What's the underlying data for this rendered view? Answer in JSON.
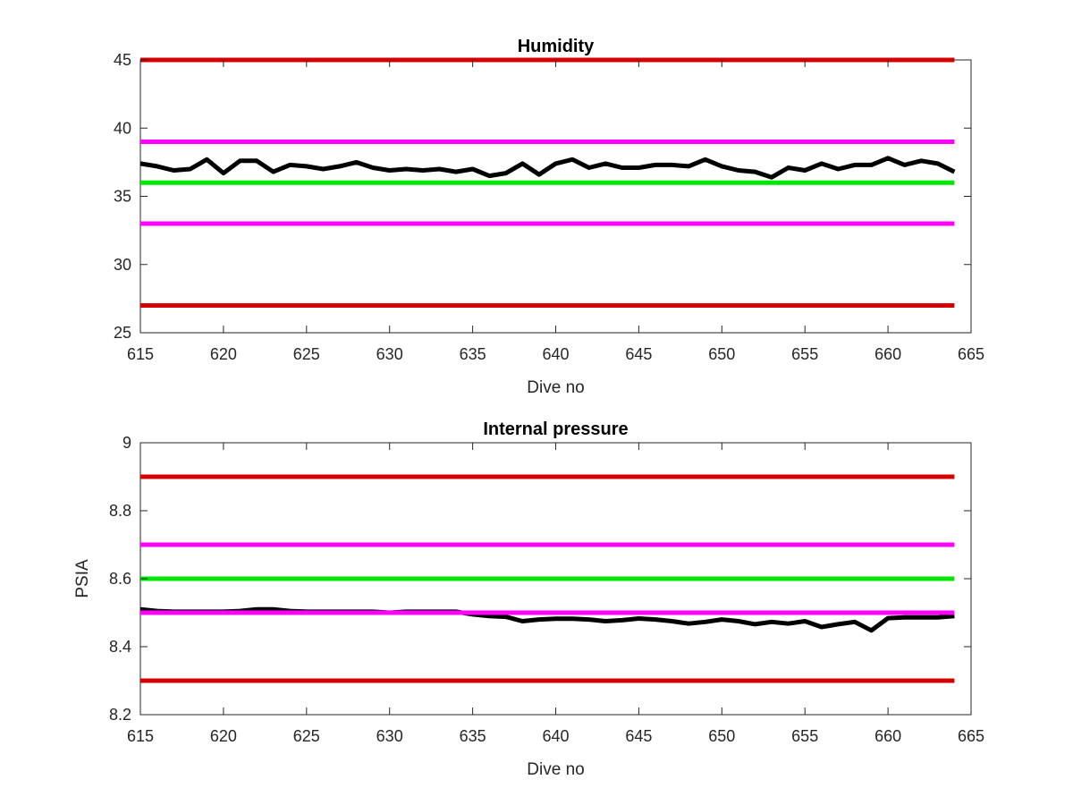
{
  "chart_data": [
    {
      "type": "line",
      "title": "Humidity",
      "xlabel": "Dive no",
      "ylabel": "",
      "xlim": [
        615,
        665
      ],
      "ylim": [
        25,
        45
      ],
      "xticks": [
        615,
        620,
        625,
        630,
        635,
        640,
        645,
        650,
        655,
        660,
        665
      ],
      "yticks": [
        25,
        30,
        35,
        40,
        45
      ],
      "grid": false,
      "series": [
        {
          "color": "#d40000",
          "x": [
            615,
            664
          ],
          "values": [
            45,
            45
          ]
        },
        {
          "color": "#ff00ff",
          "x": [
            615,
            664
          ],
          "values": [
            39,
            39
          ]
        },
        {
          "color": "#00e600",
          "x": [
            615,
            664
          ],
          "values": [
            36,
            36
          ]
        },
        {
          "color": "#ff00ff",
          "x": [
            615,
            664
          ],
          "values": [
            33,
            33
          ]
        },
        {
          "color": "#d40000",
          "x": [
            615,
            664
          ],
          "values": [
            27,
            27
          ]
        },
        {
          "color": "#000000",
          "x": [
            615,
            616,
            617,
            618,
            619,
            620,
            621,
            622,
            623,
            624,
            625,
            626,
            627,
            628,
            629,
            630,
            631,
            632,
            633,
            634,
            635,
            636,
            637,
            638,
            639,
            640,
            641,
            642,
            643,
            644,
            645,
            646,
            647,
            648,
            649,
            650,
            651,
            652,
            653,
            654,
            655,
            656,
            657,
            658,
            659,
            660,
            661,
            662,
            663,
            664
          ],
          "values": [
            37.4,
            37.2,
            36.9,
            37.0,
            37.7,
            36.7,
            37.6,
            37.6,
            36.8,
            37.3,
            37.2,
            37.0,
            37.2,
            37.5,
            37.1,
            36.9,
            37.0,
            36.9,
            37.0,
            36.8,
            37.0,
            36.5,
            36.7,
            37.4,
            36.6,
            37.4,
            37.7,
            37.1,
            37.4,
            37.1,
            37.1,
            37.3,
            37.3,
            37.2,
            37.7,
            37.2,
            36.9,
            36.8,
            36.4,
            37.1,
            36.9,
            37.4,
            37.0,
            37.3,
            37.3,
            37.8,
            37.3,
            37.6,
            37.4,
            36.8
          ]
        }
      ]
    },
    {
      "type": "line",
      "title": "Internal pressure",
      "xlabel": "Dive no",
      "ylabel": "PSIA",
      "xlim": [
        615,
        665
      ],
      "ylim": [
        8.2,
        9
      ],
      "xticks": [
        615,
        620,
        625,
        630,
        635,
        640,
        645,
        650,
        655,
        660,
        665
      ],
      "yticks": [
        8.2,
        8.4,
        8.6,
        8.8,
        9
      ],
      "grid": false,
      "series": [
        {
          "color": "#d40000",
          "x": [
            615,
            664
          ],
          "values": [
            8.9,
            8.9
          ]
        },
        {
          "color": "#ff00ff",
          "x": [
            615,
            664
          ],
          "values": [
            8.7,
            8.7
          ]
        },
        {
          "color": "#00e600",
          "x": [
            615,
            664
          ],
          "values": [
            8.6,
            8.6
          ]
        },
        {
          "color": "#000000",
          "x": [
            615,
            616,
            617,
            618,
            619,
            620,
            621,
            622,
            623,
            624,
            625,
            626,
            627,
            628,
            629,
            630,
            631,
            632,
            633,
            634,
            635,
            636,
            637,
            638,
            639,
            640,
            641,
            642,
            643,
            644,
            645,
            646,
            647,
            648,
            649,
            650,
            651,
            652,
            653,
            654,
            655,
            656,
            657,
            658,
            659,
            660,
            661,
            662,
            663,
            664
          ],
          "values": [
            8.51,
            8.505,
            8.503,
            8.503,
            8.503,
            8.503,
            8.505,
            8.51,
            8.51,
            8.505,
            8.503,
            8.503,
            8.503,
            8.503,
            8.503,
            8.5,
            8.503,
            8.503,
            8.503,
            8.503,
            8.495,
            8.49,
            8.488,
            8.475,
            8.48,
            8.482,
            8.482,
            8.48,
            8.475,
            8.478,
            8.483,
            8.48,
            8.475,
            8.468,
            8.473,
            8.48,
            8.475,
            8.466,
            8.473,
            8.468,
            8.475,
            8.458,
            8.466,
            8.473,
            8.448,
            8.484,
            8.486,
            8.486,
            8.486,
            8.49
          ]
        },
        {
          "color": "#ff00ff",
          "x": [
            615,
            664
          ],
          "values": [
            8.5,
            8.5
          ]
        },
        {
          "color": "#d40000",
          "x": [
            615,
            664
          ],
          "values": [
            8.3,
            8.3
          ]
        }
      ]
    }
  ]
}
